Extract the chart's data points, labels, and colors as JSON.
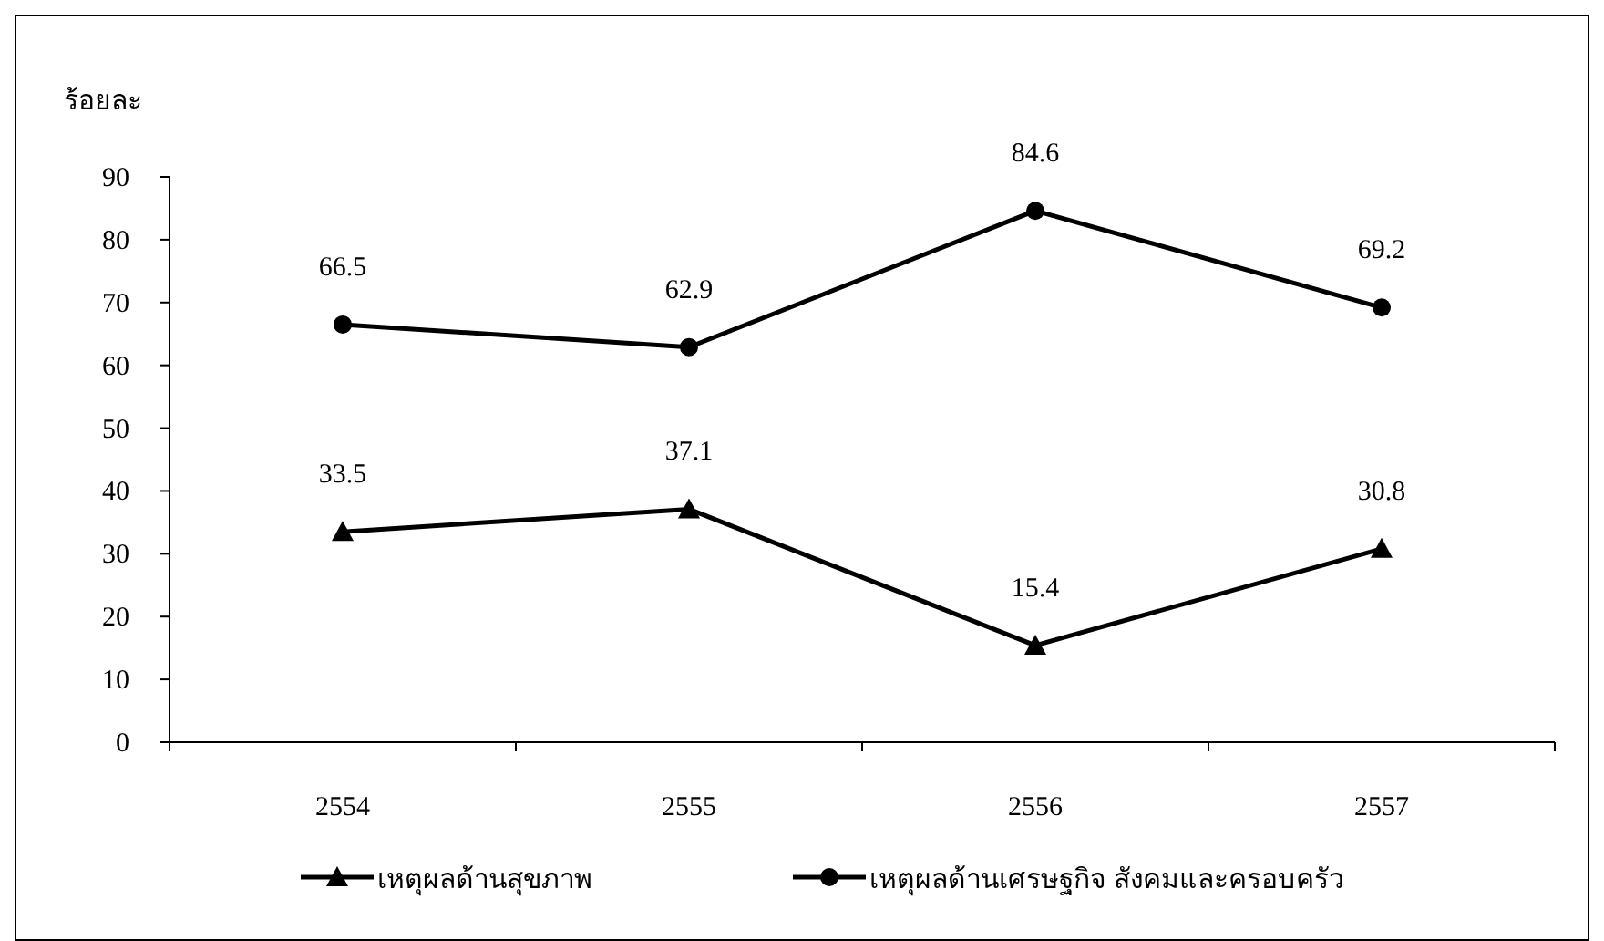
{
  "chart_data": {
    "type": "line",
    "ylabel": "ร้อยละ",
    "categories": [
      "2554",
      "2555",
      "2556",
      "2557"
    ],
    "ylim": [
      0,
      90
    ],
    "yticks": [
      0,
      10,
      20,
      30,
      40,
      50,
      60,
      70,
      80,
      90
    ],
    "grid": false,
    "legend": "bottom",
    "data_labels": true,
    "line_style": "solid",
    "series": [
      {
        "name": "เหตุผลด้านสุขภาพ",
        "color": "#000000",
        "marker": "triangle",
        "values": [
          33.5,
          37.1,
          15.4,
          30.8
        ]
      },
      {
        "name": "เหตุผลด้านเศรษฐกิจ สังคมและครอบครัว",
        "color": "#000000",
        "marker": "circle",
        "values": [
          66.5,
          62.9,
          84.6,
          69.2
        ]
      }
    ]
  }
}
